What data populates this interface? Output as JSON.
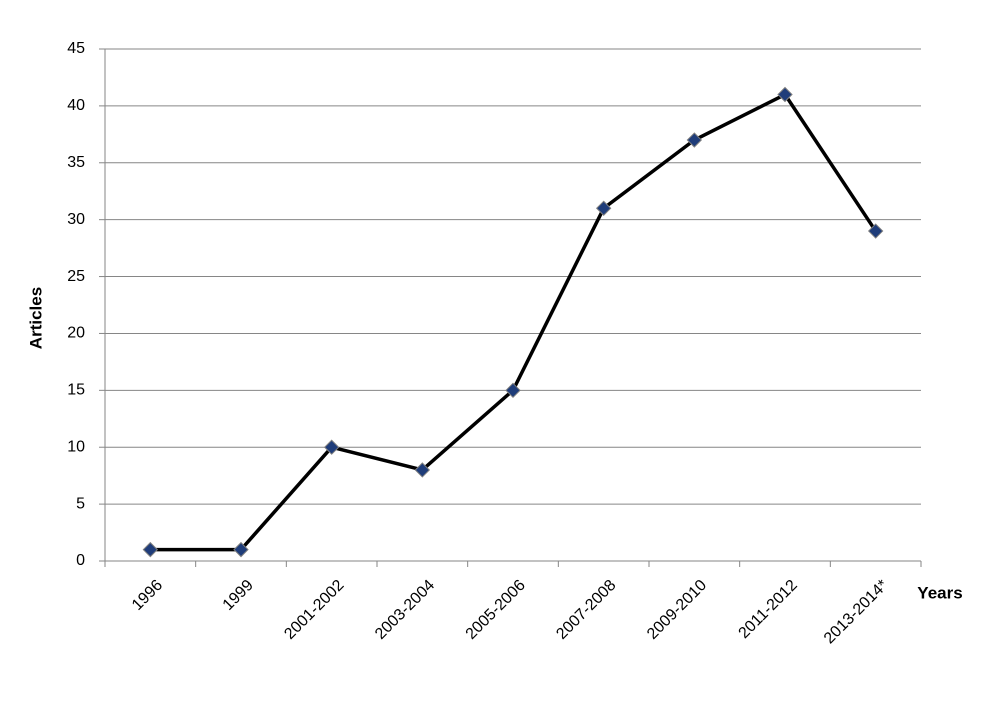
{
  "chart_data": {
    "type": "line",
    "x_label": "Years",
    "y_label": "Articles",
    "categories": [
      "1996",
      "1999",
      "2001-2002",
      "2003-2004",
      "2005-2006",
      "2007-2008",
      "2009-2010",
      "2011-2012",
      "2013-2014*"
    ],
    "values": [
      1,
      1,
      10,
      8,
      15,
      31,
      37,
      41,
      29
    ],
    "color": "#000000",
    "marker_color": "#1f3d7a",
    "ylim": [
      0,
      45
    ],
    "yticks": [
      0,
      5,
      10,
      15,
      20,
      25,
      30,
      35,
      40,
      45
    ],
    "grid": true
  }
}
